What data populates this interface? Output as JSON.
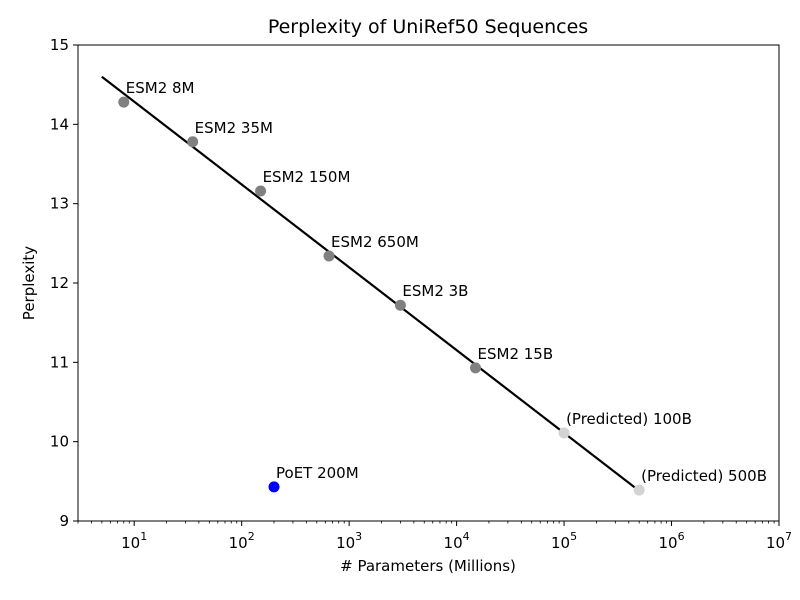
{
  "chart_data": {
    "type": "scatter",
    "title": "Perplexity of UniRef50 Sequences",
    "xlabel": "# Parameters (Millions)",
    "ylabel": "Perplexity",
    "xscale": "log",
    "xlim": [
      3,
      10000000
    ],
    "ylim": [
      9,
      15
    ],
    "grid": false,
    "x_ticks": [
      {
        "value": 10,
        "base": "10",
        "exp": "1"
      },
      {
        "value": 100,
        "base": "10",
        "exp": "2"
      },
      {
        "value": 1000,
        "base": "10",
        "exp": "3"
      },
      {
        "value": 10000,
        "base": "10",
        "exp": "4"
      },
      {
        "value": 100000,
        "base": "10",
        "exp": "5"
      },
      {
        "value": 1000000,
        "base": "10",
        "exp": "6"
      },
      {
        "value": 10000000,
        "base": "10",
        "exp": "7"
      }
    ],
    "y_ticks": [
      "9",
      "10",
      "11",
      "12",
      "13",
      "14",
      "15"
    ],
    "fit_line": {
      "color": "#000000",
      "x": [
        5,
        500000
      ],
      "y": [
        14.6,
        9.38
      ]
    },
    "series": [
      {
        "color": "#808080",
        "points": [
          {
            "x": 8,
            "y": 14.28,
            "label": "ESM2 8M"
          },
          {
            "x": 35,
            "y": 13.78,
            "label": "ESM2 35M"
          },
          {
            "x": 150,
            "y": 13.16,
            "label": "ESM2 150M"
          },
          {
            "x": 650,
            "y": 12.34,
            "label": "ESM2 650M"
          },
          {
            "x": 3000,
            "y": 11.72,
            "label": "ESM2 3B"
          },
          {
            "x": 15000,
            "y": 10.93,
            "label": "ESM2 15B"
          }
        ]
      },
      {
        "color": "#d3d3d3",
        "points": [
          {
            "x": 100000,
            "y": 10.11,
            "label": "(Predicted) 100B"
          },
          {
            "x": 500000,
            "y": 9.39,
            "label": "(Predicted) 500B"
          }
        ]
      },
      {
        "color": "#0000ff",
        "points": [
          {
            "x": 200,
            "y": 9.43,
            "label": "PoET 200M"
          }
        ]
      }
    ]
  }
}
